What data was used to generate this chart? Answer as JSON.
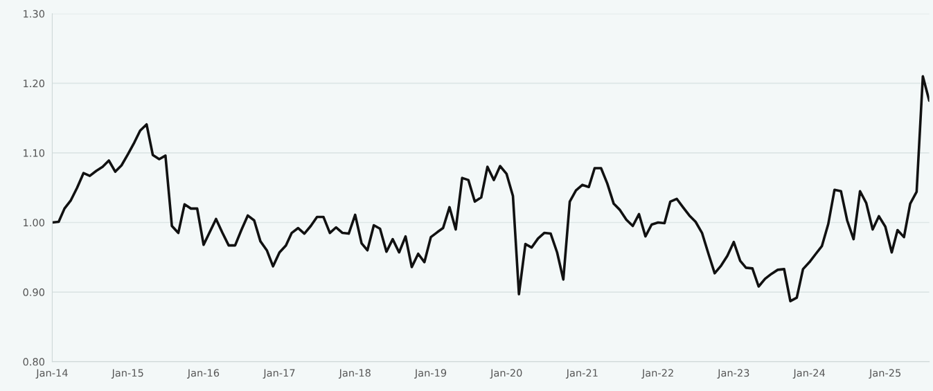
{
  "chart_data": {
    "type": "line",
    "x": [
      "2014-01",
      "2014-02",
      "2014-03",
      "2014-04",
      "2014-05",
      "2014-06",
      "2014-07",
      "2014-08",
      "2014-09",
      "2014-10",
      "2014-11",
      "2014-12",
      "2015-01",
      "2015-02",
      "2015-03",
      "2015-04",
      "2015-05",
      "2015-06",
      "2015-07",
      "2015-08",
      "2015-09",
      "2015-10",
      "2015-11",
      "2015-12",
      "2016-01",
      "2016-02",
      "2016-03",
      "2016-04",
      "2016-05",
      "2016-06",
      "2016-07",
      "2016-08",
      "2016-09",
      "2016-10",
      "2016-11",
      "2016-12",
      "2017-01",
      "2017-02",
      "2017-03",
      "2017-04",
      "2017-05",
      "2017-06",
      "2017-07",
      "2017-08",
      "2017-09",
      "2017-10",
      "2017-11",
      "2017-12",
      "2018-01",
      "2018-02",
      "2018-03",
      "2018-04",
      "2018-05",
      "2018-06",
      "2018-07",
      "2018-08",
      "2018-09",
      "2018-10",
      "2018-11",
      "2018-12",
      "2019-01",
      "2019-02",
      "2019-03",
      "2019-04",
      "2019-05",
      "2019-06",
      "2019-07",
      "2019-08",
      "2019-09",
      "2019-10",
      "2019-11",
      "2019-12",
      "2020-01",
      "2020-02",
      "2020-03",
      "2020-04",
      "2020-05",
      "2020-06",
      "2020-07",
      "2020-08",
      "2020-09",
      "2020-10",
      "2020-11",
      "2020-12",
      "2021-01",
      "2021-02",
      "2021-03",
      "2021-04",
      "2021-05",
      "2021-06",
      "2021-07",
      "2021-08",
      "2021-09",
      "2021-10",
      "2021-11",
      "2021-12",
      "2022-01",
      "2022-02",
      "2022-03",
      "2022-04",
      "2022-05",
      "2022-06",
      "2022-07",
      "2022-08",
      "2022-09",
      "2022-10",
      "2022-11",
      "2022-12",
      "2023-01",
      "2023-02",
      "2023-03",
      "2023-04",
      "2023-05",
      "2023-06",
      "2023-07",
      "2023-08",
      "2023-09",
      "2023-10",
      "2023-11",
      "2023-12",
      "2024-01",
      "2024-02",
      "2024-03",
      "2024-04",
      "2024-05",
      "2024-06",
      "2024-07",
      "2024-08",
      "2024-09",
      "2024-10",
      "2024-11",
      "2024-12",
      "2025-01",
      "2025-02",
      "2025-03",
      "2025-04",
      "2025-05",
      "2025-06",
      "2025-07",
      "2025-08"
    ],
    "series": [
      {
        "color": "#111111",
        "values": [
          1.0,
          1.001,
          1.02,
          1.032,
          1.05,
          1.071,
          1.067,
          1.074,
          1.08,
          1.089,
          1.073,
          1.082,
          1.098,
          1.115,
          1.132,
          1.141,
          1.097,
          1.091,
          1.096,
          0.995,
          0.985,
          1.026,
          1.02,
          1.02,
          0.968,
          0.987,
          1.005,
          0.985,
          0.967,
          0.967,
          0.989,
          1.01,
          1.003,
          0.973,
          0.96,
          0.937,
          0.957,
          0.967,
          0.985,
          0.992,
          0.984,
          0.995,
          1.008,
          1.008,
          0.985,
          0.993,
          0.985,
          0.984,
          1.011,
          0.97,
          0.96,
          0.996,
          0.991,
          0.958,
          0.976,
          0.957,
          0.98,
          0.936,
          0.955,
          0.943,
          0.979,
          0.986,
          0.992,
          1.022,
          0.99,
          1.064,
          1.061,
          1.03,
          1.036,
          1.08,
          1.061,
          1.081,
          1.07,
          1.038,
          0.897,
          0.969,
          0.964,
          0.977,
          0.985,
          0.984,
          0.957,
          0.918,
          1.03,
          1.046,
          1.054,
          1.051,
          1.078,
          1.078,
          1.056,
          1.027,
          1.018,
          1.004,
          0.995,
          1.012,
          0.98,
          0.997,
          1.0,
          0.999,
          1.03,
          1.034,
          1.022,
          1.01,
          1.001,
          0.985,
          0.955,
          0.927,
          0.938,
          0.952,
          0.972,
          0.945,
          0.935,
          0.934,
          0.908,
          0.919,
          0.926,
          0.932,
          0.933,
          0.887,
          0.892,
          0.933,
          0.943,
          0.955,
          0.966,
          0.998,
          1.047,
          1.045,
          1.003,
          0.976,
          1.045,
          1.028,
          0.99,
          1.009,
          0.994,
          0.957,
          0.989,
          0.979,
          1.027,
          1.044,
          1.21,
          1.175
        ]
      }
    ],
    "xlim": [
      "2014-01",
      "2025-08"
    ],
    "xticks": [
      {
        "value": "2014-01",
        "label": "Jan-14"
      },
      {
        "value": "2015-01",
        "label": "Jan-15"
      },
      {
        "value": "2016-01",
        "label": "Jan-16"
      },
      {
        "value": "2017-01",
        "label": "Jan-17"
      },
      {
        "value": "2018-01",
        "label": "Jan-18"
      },
      {
        "value": "2019-01",
        "label": "Jan-19"
      },
      {
        "value": "2020-01",
        "label": "Jan-20"
      },
      {
        "value": "2021-01",
        "label": "Jan-21"
      },
      {
        "value": "2022-01",
        "label": "Jan-22"
      },
      {
        "value": "2023-01",
        "label": "Jan-23"
      },
      {
        "value": "2024-01",
        "label": "Jan-24"
      },
      {
        "value": "2025-01",
        "label": "Jan-25"
      }
    ],
    "ylim": [
      0.8,
      1.3
    ],
    "yticks": [
      {
        "value": 0.8,
        "label": "0.80"
      },
      {
        "value": 0.9,
        "label": "0.90"
      },
      {
        "value": 1.0,
        "label": "1.00"
      },
      {
        "value": 1.1,
        "label": "1.10"
      },
      {
        "value": 1.2,
        "label": "1.20"
      },
      {
        "value": 1.3,
        "label": "1.30"
      }
    ],
    "grid": "y",
    "marker": "none",
    "line_style": "solid"
  }
}
